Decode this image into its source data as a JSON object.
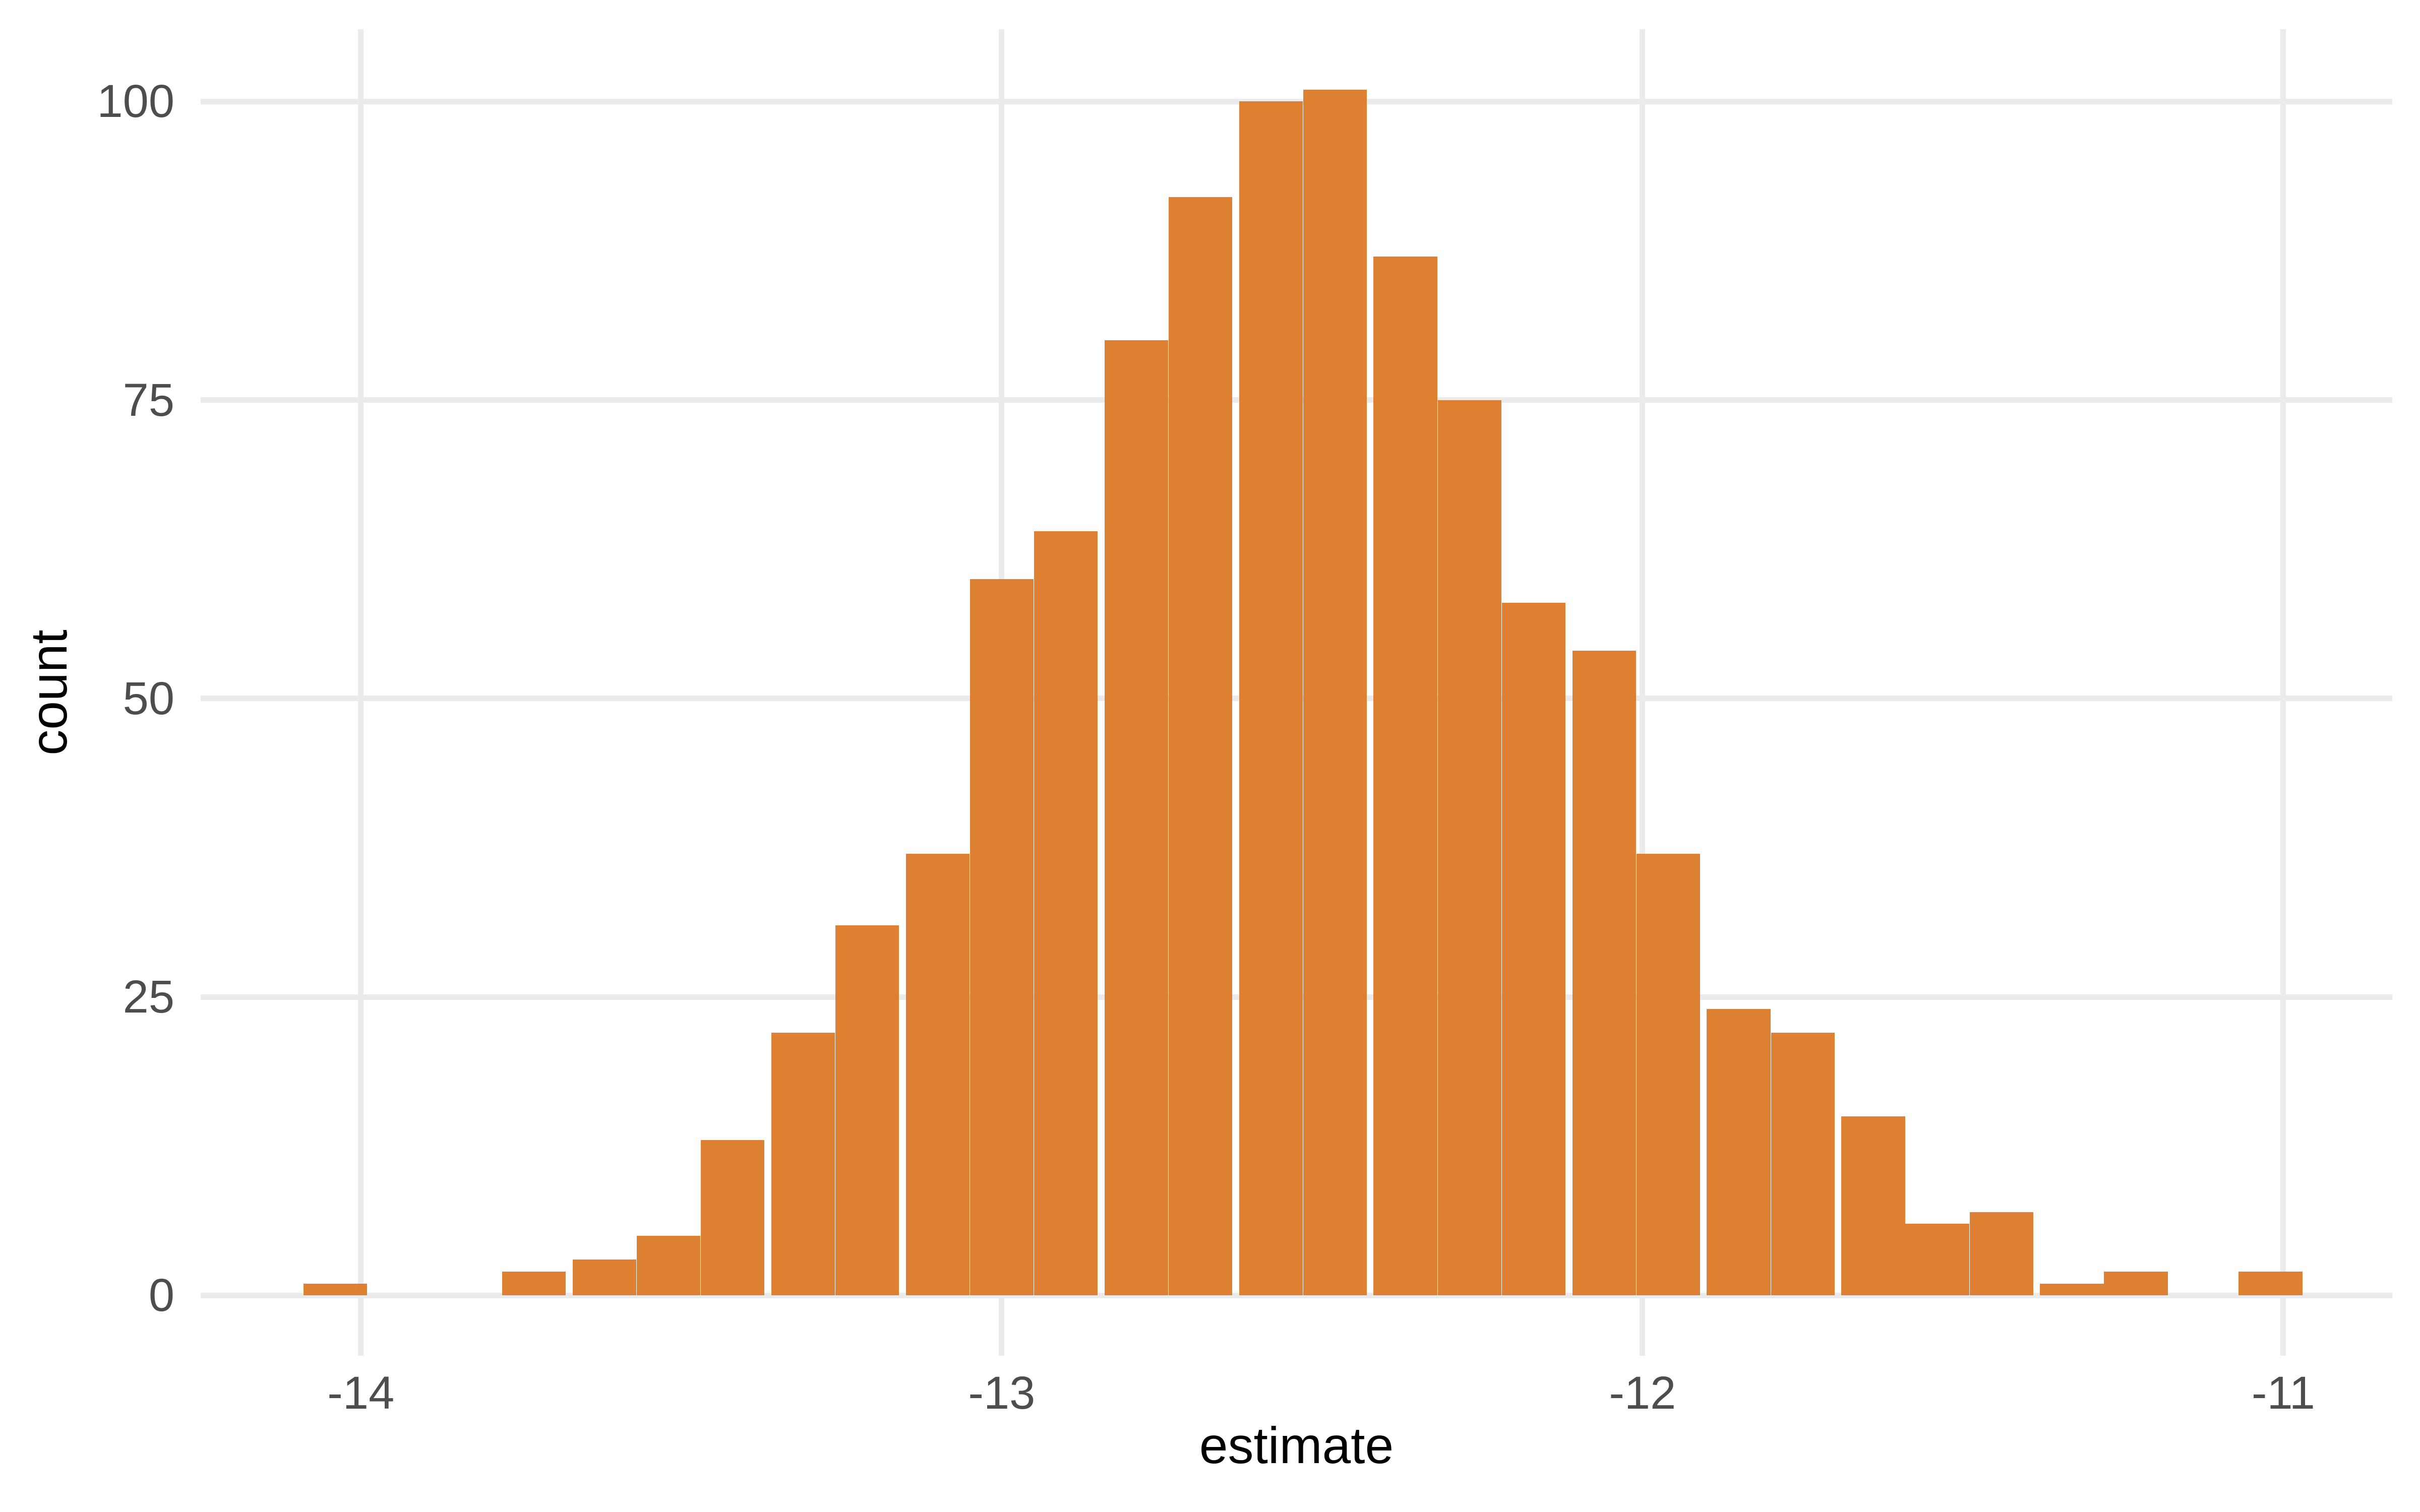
{
  "chart_data": {
    "type": "bar",
    "subtype": "histogram",
    "title": "",
    "xlabel": "estimate",
    "ylabel": "count",
    "x_ticks": [
      -14,
      -13,
      -12,
      -11
    ],
    "y_ticks": [
      0,
      25,
      50,
      75,
      100
    ],
    "xlim": [
      -14.25,
      -10.83
    ],
    "ylim": [
      -5.05,
      106.05
    ],
    "data_y_range": [
      0,
      101
    ],
    "bin_width": 0.104,
    "bin_centers": [
      -14.04,
      -13.94,
      -13.83,
      -13.73,
      -13.62,
      -13.52,
      -13.42,
      -13.31,
      -13.21,
      -13.1,
      -13.0,
      -12.9,
      -12.79,
      -12.69,
      -12.58,
      -12.48,
      -12.37,
      -12.27,
      -12.17,
      -12.06,
      -11.96,
      -11.85,
      -11.75,
      -11.64,
      -11.54,
      -11.44,
      -11.33,
      -11.23,
      -11.12,
      -11.02
    ],
    "counts": [
      1,
      0,
      0,
      2,
      3,
      5,
      13,
      22,
      31,
      37,
      60,
      64,
      80,
      92,
      100,
      101,
      87,
      75,
      58,
      54,
      37,
      24,
      22,
      15,
      6,
      7,
      1,
      2,
      0,
      2
    ],
    "grid": "on",
    "legend": "none",
    "colors": {
      "bar_fill": "#DD7A28",
      "bar_opacity": 0.95,
      "grid": "#EBEBEB",
      "tick_text": "#4D4D4D",
      "axis_title_text": "#000000",
      "background": "#FFFFFF",
      "panel_background": "#FFFFFF"
    }
  }
}
